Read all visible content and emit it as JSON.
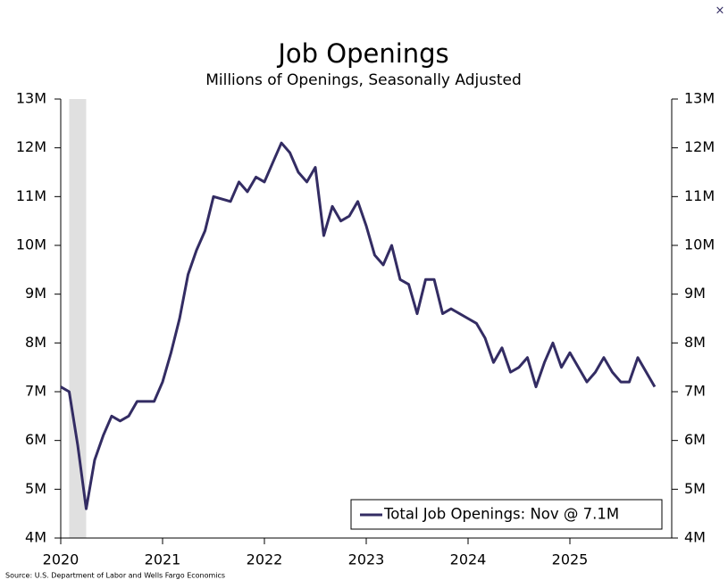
{
  "close_button": "×",
  "chart_data": {
    "type": "line",
    "title": "Job Openings",
    "subtitle": "Millions of Openings, Seasonally Adjusted",
    "source": "Source: U.S. Department of Labor and Wells Fargo Economics",
    "x": [
      2020,
      2020.083,
      2020.167,
      2020.25,
      2020.333,
      2020.417,
      2020.5,
      2020.583,
      2020.667,
      2020.75,
      2020.833,
      2020.917,
      2021,
      2021.083,
      2021.167,
      2021.25,
      2021.333,
      2021.417,
      2021.5,
      2021.583,
      2021.667,
      2021.75,
      2021.833,
      2021.917,
      2022,
      2022.083,
      2022.167,
      2022.25,
      2022.333,
      2022.417,
      2022.5,
      2022.583,
      2022.667,
      2022.75,
      2022.833,
      2022.917,
      2023,
      2023.083,
      2023.167,
      2023.25,
      2023.333,
      2023.417,
      2023.5,
      2023.583,
      2023.667,
      2023.75,
      2023.833,
      2023.917,
      2024,
      2024.083,
      2024.167,
      2024.25,
      2024.333,
      2024.417,
      2024.5,
      2024.583,
      2024.667,
      2024.75,
      2024.833,
      2024.917,
      2025,
      2025.083,
      2025.167,
      2025.25,
      2025.333,
      2025.417,
      2025.5,
      2025.583,
      2025.667,
      2025.75,
      2025.833
    ],
    "series": [
      {
        "name": "Total Job Openings: Nov @ 7.1M",
        "color": "#332c63",
        "values": [
          7.1,
          7.0,
          5.9,
          4.6,
          5.6,
          6.1,
          6.5,
          6.4,
          6.5,
          6.8,
          6.8,
          6.8,
          7.2,
          7.8,
          8.5,
          9.4,
          9.9,
          10.3,
          11.0,
          10.95,
          10.9,
          11.3,
          11.1,
          11.4,
          11.3,
          11.7,
          12.1,
          11.9,
          11.5,
          11.3,
          11.6,
          10.2,
          10.8,
          10.5,
          10.6,
          10.9,
          10.4,
          9.8,
          9.6,
          10.0,
          9.3,
          9.2,
          8.6,
          9.3,
          9.3,
          8.6,
          8.7,
          8.6,
          8.5,
          8.4,
          8.1,
          7.6,
          7.9,
          7.4,
          7.5,
          7.7,
          7.1,
          7.6,
          8.0,
          7.5,
          7.8,
          7.5,
          7.2,
          7.4,
          7.7,
          7.4,
          7.2,
          7.2,
          7.7,
          7.4,
          7.1
        ]
      }
    ],
    "shaded_range": [
      2020.083,
      2020.25
    ],
    "shade_color": "#e0e0e0",
    "xlim": [
      2020,
      2026
    ],
    "xticks": [
      2020,
      2021,
      2022,
      2023,
      2024,
      2025
    ],
    "ylim": [
      4,
      13
    ],
    "yticks": [
      {
        "value": 4,
        "label": "4M"
      },
      {
        "value": 5,
        "label": "5M"
      },
      {
        "value": 6,
        "label": "6M"
      },
      {
        "value": 7,
        "label": "7M"
      },
      {
        "value": 8,
        "label": "8M"
      },
      {
        "value": 9,
        "label": "9M"
      },
      {
        "value": 10,
        "label": "10M"
      },
      {
        "value": 11,
        "label": "11M"
      },
      {
        "value": 12,
        "label": "12M"
      },
      {
        "value": 13,
        "label": "13M"
      }
    ],
    "y2lim": [
      4,
      13
    ],
    "y2ticks": [
      {
        "value": 4,
        "label": "4M"
      },
      {
        "value": 5,
        "label": "5M"
      },
      {
        "value": 6,
        "label": "6M"
      },
      {
        "value": 7,
        "label": "7M"
      },
      {
        "value": 8,
        "label": "8M"
      },
      {
        "value": 9,
        "label": "9M"
      },
      {
        "value": 10,
        "label": "10M"
      },
      {
        "value": 11,
        "label": "11M"
      },
      {
        "value": 12,
        "label": "12M"
      },
      {
        "value": 13,
        "label": "13M"
      }
    ],
    "legend": "lower right"
  }
}
